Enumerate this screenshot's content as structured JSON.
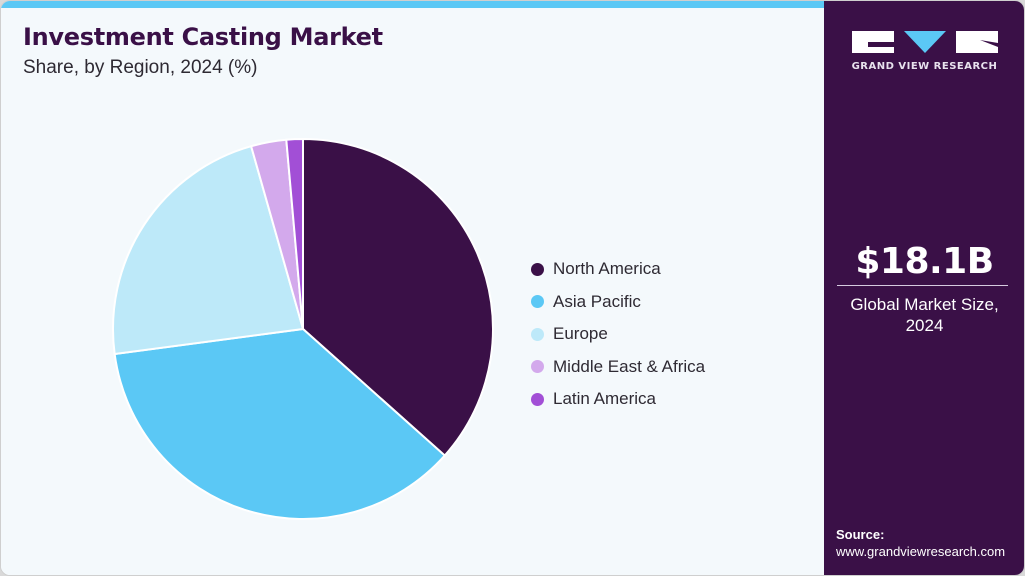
{
  "header": {
    "title": "Investment Casting Market",
    "subtitle": "Share, by Region, 2024 (%)"
  },
  "colors": {
    "accent_bar": "#5bc8f5",
    "panel_bg": "#3a1047",
    "chart_bg": "#f4f9fc"
  },
  "legend": [
    {
      "label": "North America",
      "color": "#3a1047"
    },
    {
      "label": "Asia Pacific",
      "color": "#5bc8f5"
    },
    {
      "label": "Europe",
      "color": "#bde9f9"
    },
    {
      "label": "Middle East & Africa",
      "color": "#d3a9ec"
    },
    {
      "label": "Latin America",
      "color": "#a24fd6"
    }
  ],
  "side_panel": {
    "logo_text": "GRAND VIEW RESEARCH",
    "market_value": "$18.1B",
    "market_label_line1": "Global Market Size,",
    "market_label_line2": "2024",
    "source_label": "Source:",
    "source_url": "www.grandviewresearch.com"
  },
  "chart_data": {
    "type": "pie",
    "title": "Investment Casting Market",
    "subtitle": "Share, by Region, 2024 (%)",
    "categories": [
      "North America",
      "Asia Pacific",
      "Europe",
      "Middle East & Africa",
      "Latin America"
    ],
    "values": [
      36.6,
      36.3,
      22.7,
      3.0,
      1.4
    ],
    "colors": [
      "#3a1047",
      "#5bc8f5",
      "#bde9f9",
      "#d3a9ec",
      "#a24fd6"
    ],
    "start_angle_deg": 0,
    "direction": "clockwise",
    "legend_position": "right",
    "unit": "%"
  }
}
